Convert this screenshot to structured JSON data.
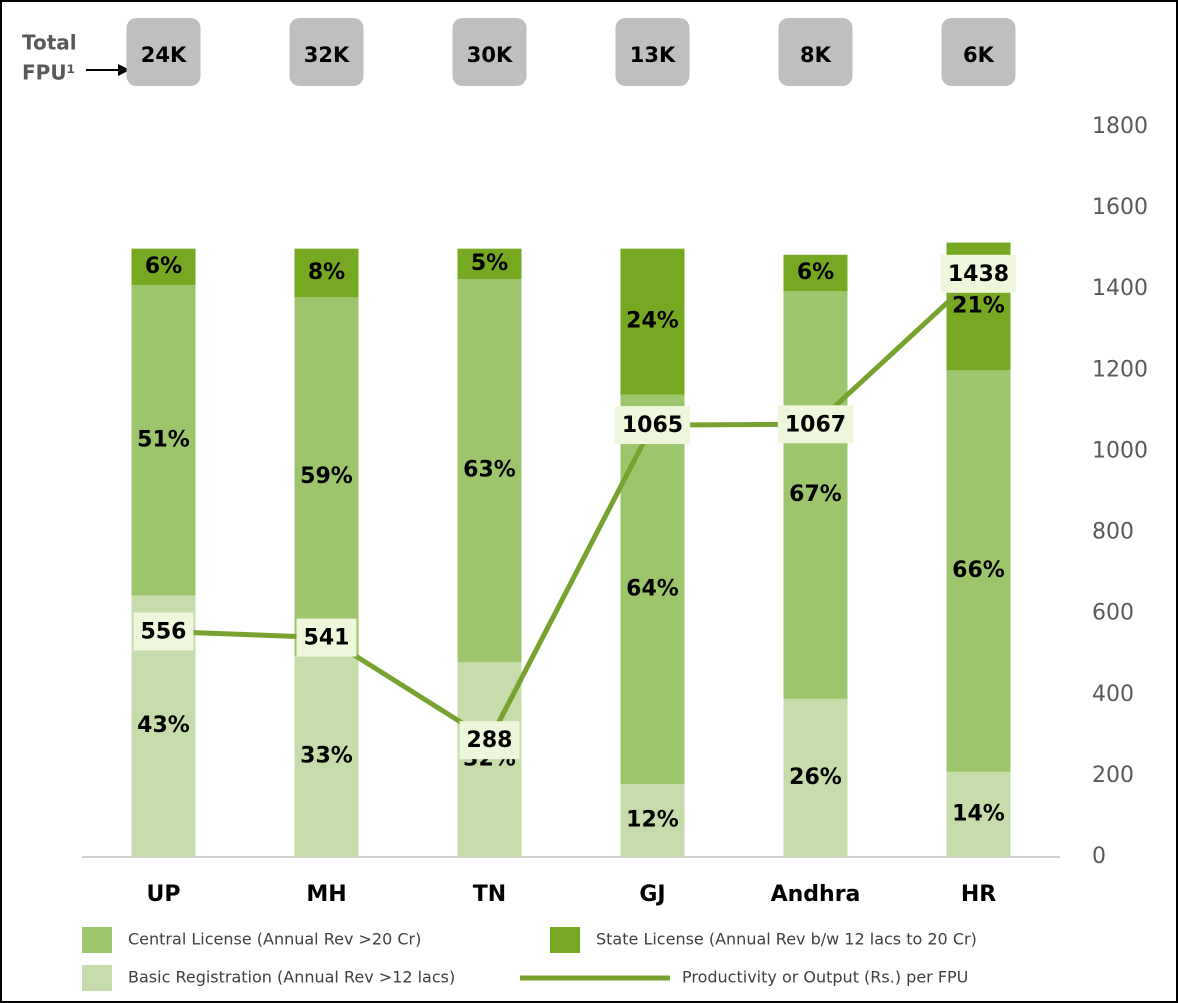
{
  "chart_data": {
    "type": "bar",
    "categories": [
      "UP",
      "MH",
      "TN",
      "GJ",
      "Andhra",
      "HR"
    ],
    "total_fpu_label": [
      "Total",
      "FPU¹"
    ],
    "total_fpu": [
      "24K",
      "32K",
      "30K",
      "13K",
      "8K",
      "6K"
    ],
    "ylim": [
      0,
      120
    ],
    "y2lim": [
      0,
      1800
    ],
    "y2ticks": [
      0,
      200,
      400,
      600,
      800,
      1000,
      1200,
      1400,
      1600,
      1800
    ],
    "series": [
      {
        "name": "Basic Registration (Annual Rev >12 lacs)",
        "color": "#c6dcab",
        "values": [
          43,
          33,
          32,
          12,
          26,
          14
        ],
        "value_labels": [
          "43%",
          "33%",
          "32%",
          "12%",
          "26%",
          "14%"
        ]
      },
      {
        "name": "Central License (Annual Rev >20 Cr)",
        "color": "#9dc56b",
        "values": [
          51,
          59,
          63,
          64,
          67,
          66
        ],
        "value_labels": [
          "51%",
          "59%",
          "63%",
          "64%",
          "67%",
          "66%"
        ]
      },
      {
        "name": "State License (Annual Rev b/w 12 lacs to 20 Cr)",
        "color": "#76a821",
        "values": [
          6,
          8,
          5,
          24,
          6,
          21
        ],
        "value_labels": [
          "6%",
          "8%",
          "5%",
          "24%",
          "6%",
          "21%"
        ]
      },
      {
        "name": "Productivity or Output (Rs.) per FPU",
        "color": "#78a22f",
        "type": "line",
        "axis": "y2",
        "values": [
          556,
          541,
          288,
          1065,
          1067,
          1438
        ]
      }
    ]
  }
}
